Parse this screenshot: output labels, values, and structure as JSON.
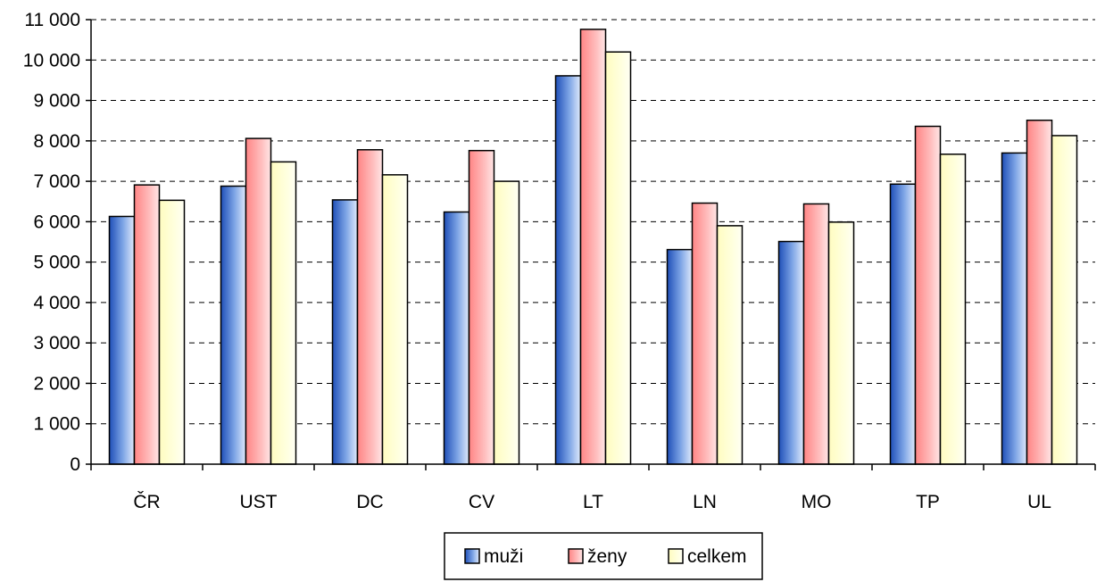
{
  "chart_data": {
    "type": "bar",
    "categories": [
      "ČR",
      "UST",
      "DC",
      "CV",
      "LT",
      "LN",
      "MO",
      "TP",
      "UL"
    ],
    "series": [
      {
        "name": "muži",
        "values": [
          6130,
          6880,
          6540,
          6240,
          9610,
          5310,
          5510,
          6930,
          7700
        ],
        "color": "#3a66c4"
      },
      {
        "name": "ženy",
        "values": [
          6910,
          8060,
          7780,
          7760,
          10760,
          6460,
          6440,
          8360,
          8510
        ],
        "color": "#ff9a9a"
      },
      {
        "name": "celkem",
        "values": [
          6530,
          7480,
          7160,
          7000,
          10200,
          5900,
          5990,
          7670,
          8130
        ],
        "color": "#ffffcc"
      }
    ],
    "title": "",
    "xlabel": "",
    "ylabel": "",
    "ylim": [
      0,
      11000
    ],
    "yticks": [
      0,
      1000,
      2000,
      3000,
      4000,
      5000,
      6000,
      7000,
      8000,
      9000,
      10000,
      11000
    ],
    "ytick_labels": [
      "0",
      "1 000",
      "2 000",
      "3 000",
      "4 000",
      "5 000",
      "6 000",
      "7 000",
      "8 000",
      "9 000",
      "10 000",
      "11 000"
    ],
    "grid": "horizontal dashed",
    "legend_position": "bottom-center"
  }
}
